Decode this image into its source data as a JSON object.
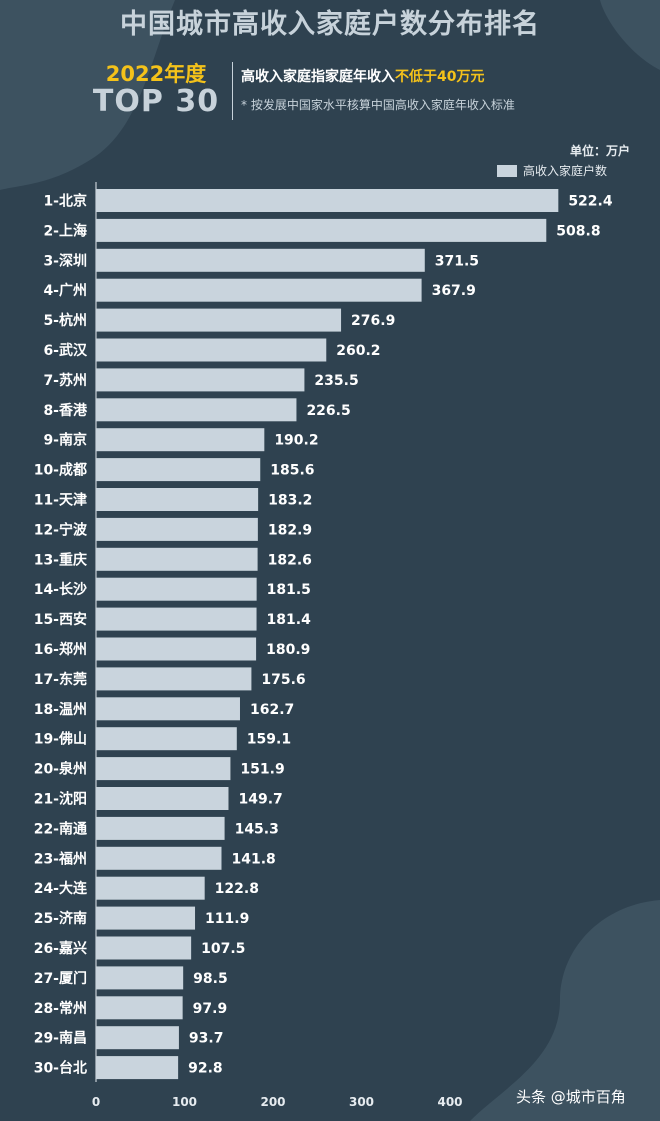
{
  "header": {
    "title": "中国城市高收入家庭户数分布排名",
    "year": "2022年度",
    "top": "TOP 30",
    "definition_prefix": "高收入家庭指家庭年收入",
    "definition_highlight": "不低于40万元",
    "note": "* 按发展中国家水平核算中国高收入家庭年收入标准",
    "unit": "单位：万户"
  },
  "watermark": "头条 @城市百角",
  "colors": {
    "background": "#2f4250",
    "accent": "#f4c21a",
    "bar": "#c9d4dd",
    "text": "#ffffff"
  },
  "chart_data": {
    "type": "bar",
    "orientation": "horizontal",
    "series": [
      {
        "name": "高收入家庭户数",
        "values": [
          522.4,
          508.8,
          371.5,
          367.9,
          276.9,
          260.2,
          235.5,
          226.5,
          190.2,
          185.6,
          183.2,
          182.9,
          182.6,
          181.5,
          181.4,
          180.9,
          175.6,
          162.7,
          159.1,
          151.9,
          149.7,
          145.3,
          141.8,
          122.8,
          111.9,
          107.5,
          98.5,
          97.9,
          93.7,
          92.8
        ]
      }
    ],
    "categories": [
      "1-北京",
      "2-上海",
      "3-深圳",
      "4-广州",
      "5-杭州",
      "6-武汉",
      "7-苏州",
      "8-香港",
      "9-南京",
      "10-成都",
      "11-天津",
      "12-宁波",
      "13-重庆",
      "14-长沙",
      "15-西安",
      "16-郑州",
      "17-东莞",
      "18-温州",
      "19-佛山",
      "20-泉州",
      "21-沈阳",
      "22-南通",
      "23-福州",
      "24-大连",
      "25-济南",
      "26-嘉兴",
      "27-厦门",
      "28-常州",
      "29-南昌",
      "30-台北"
    ],
    "value_labels": [
      "522.4",
      "508.8",
      "371.5",
      "367.9",
      "276.9",
      "260.2",
      "235.5",
      "226.5",
      "190.2",
      "185.6",
      "183.2",
      "182.9",
      "182.6",
      "181.5",
      "181.4",
      "180.9",
      "175.6",
      "162.7",
      "159.1",
      "151.9",
      "149.7",
      "145.3",
      "141.8",
      "122.8",
      "111.9",
      "107.5",
      "98.5",
      "97.9",
      "93.7",
      "92.8"
    ],
    "x_ticks": [
      "0",
      "100",
      "200",
      "300",
      "400"
    ],
    "xlim": [
      0,
      520
    ],
    "legend_position": "top-right",
    "grid": false
  }
}
